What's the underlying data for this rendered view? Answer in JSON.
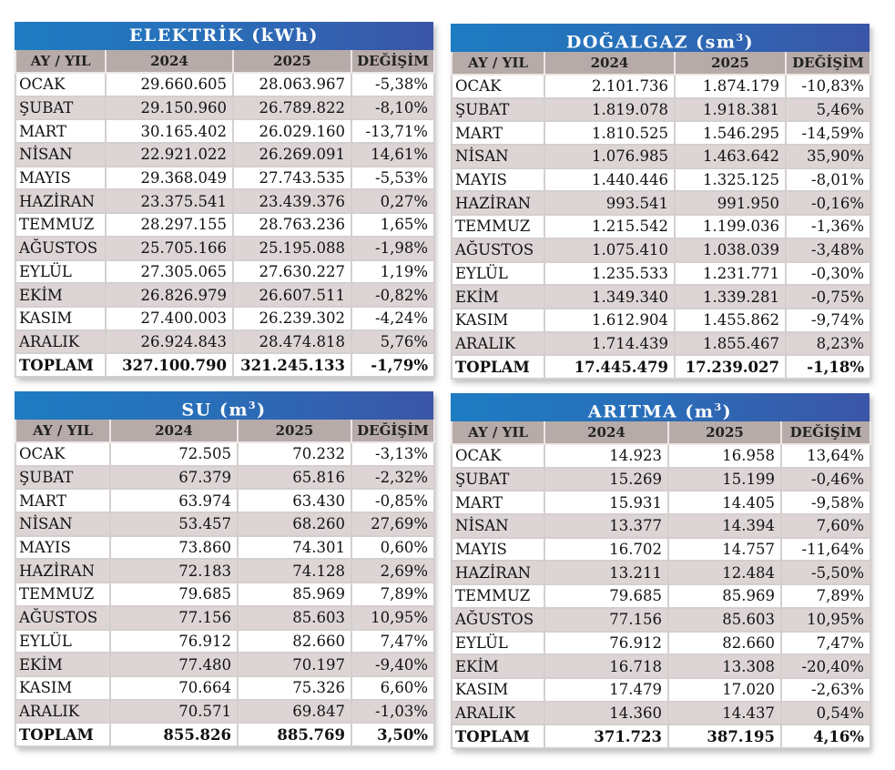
{
  "headers": {
    "month": "AY / YIL",
    "y2024": "2024",
    "y2025": "2025",
    "change": "DEĞİŞİM"
  },
  "colors": {
    "title_start": "#1d7cc2",
    "title_end": "#3b55a7",
    "header_bg": "#b6aba8",
    "row_alt": "#ddd5d5"
  },
  "tables": [
    {
      "id": "elektrik",
      "title": "ELEKTRİK (kWh)",
      "title_main": "ELEKTRİK (kWh)",
      "title_sup": "",
      "rows": [
        [
          "OCAK",
          "29.660.605",
          "28.063.967",
          "-5,38%"
        ],
        [
          "ŞUBAT",
          "29.150.960",
          "26.789.822",
          "-8,10%"
        ],
        [
          "MART",
          "30.165.402",
          "26.029.160",
          "-13,71%"
        ],
        [
          "NİSAN",
          "22.921.022",
          "26.269.091",
          "14,61%"
        ],
        [
          "MAYIS",
          "29.368.049",
          "27.743.535",
          "-5,53%"
        ],
        [
          "HAZİRAN",
          "23.375.541",
          "23.439.376",
          "0,27%"
        ],
        [
          "TEMMUZ",
          "28.297.155",
          "28.763.236",
          "1,65%"
        ],
        [
          "AĞUSTOS",
          "25.705.166",
          "25.195.088",
          "-1,98%"
        ],
        [
          "EYLÜL",
          "27.305.065",
          "27.630.227",
          "1,19%"
        ],
        [
          "EKİM",
          "26.826.979",
          "26.607.511",
          "-0,82%"
        ],
        [
          "KASIM",
          "27.400.003",
          "26.239.302",
          "-4,24%"
        ],
        [
          "ARALIK",
          "26.924.843",
          "28.474.818",
          "5,76%"
        ]
      ],
      "total": [
        "TOPLAM",
        "327.100.790",
        "321.245.133",
        "-1,79%"
      ]
    },
    {
      "id": "dogalgaz",
      "title": "DOĞALGAZ (sm³)",
      "title_main": "DOĞALGAZ (sm",
      "title_sup": "3",
      "rows": [
        [
          "OCAK",
          "2.101.736",
          "1.874.179",
          "-10,83%"
        ],
        [
          "ŞUBAT",
          "1.819.078",
          "1.918.381",
          "5,46%"
        ],
        [
          "MART",
          "1.810.525",
          "1.546.295",
          "-14,59%"
        ],
        [
          "NİSAN",
          "1.076.985",
          "1.463.642",
          "35,90%"
        ],
        [
          "MAYIS",
          "1.440.446",
          "1.325.125",
          "-8,01%"
        ],
        [
          "HAZİRAN",
          "993.541",
          "991.950",
          "-0,16%"
        ],
        [
          "TEMMUZ",
          "1.215.542",
          "1.199.036",
          "-1,36%"
        ],
        [
          "AĞUSTOS",
          "1.075.410",
          "1.038.039",
          "-3,48%"
        ],
        [
          "EYLÜL",
          "1.235.533",
          "1.231.771",
          "-0,30%"
        ],
        [
          "EKİM",
          "1.349.340",
          "1.339.281",
          "-0,75%"
        ],
        [
          "KASIM",
          "1.612.904",
          "1.455.862",
          "-9,74%"
        ],
        [
          "ARALIK",
          "1.714.439",
          "1.855.467",
          "8,23%"
        ]
      ],
      "total": [
        "TOPLAM",
        "17.445.479",
        "17.239.027",
        "-1,18%"
      ]
    },
    {
      "id": "su",
      "title": "SU (m³)",
      "title_main": "SU (m",
      "title_sup": "3",
      "rows": [
        [
          "OCAK",
          "72.505",
          "70.232",
          "-3,13%"
        ],
        [
          "ŞUBAT",
          "67.379",
          "65.816",
          "-2,32%"
        ],
        [
          "MART",
          "63.974",
          "63.430",
          "-0,85%"
        ],
        [
          "NİSAN",
          "53.457",
          "68.260",
          "27,69%"
        ],
        [
          "MAYIS",
          "73.860",
          "74.301",
          "0,60%"
        ],
        [
          "HAZİRAN",
          "72.183",
          "74.128",
          "2,69%"
        ],
        [
          "TEMMUZ",
          "79.685",
          "85.969",
          "7,89%"
        ],
        [
          "AĞUSTOS",
          "77.156",
          "85.603",
          "10,95%"
        ],
        [
          "EYLÜL",
          "76.912",
          "82.660",
          "7,47%"
        ],
        [
          "EKİM",
          "77.480",
          "70.197",
          "-9,40%"
        ],
        [
          "KASIM",
          "70.664",
          "75.326",
          "6,60%"
        ],
        [
          "ARALIK",
          "70.571",
          "69.847",
          "-1,03%"
        ]
      ],
      "total": [
        "TOPLAM",
        "855.826",
        "885.769",
        "3,50%"
      ]
    },
    {
      "id": "aritma",
      "title": "ARITMA (m³)",
      "title_main": "ARITMA (m",
      "title_sup": "3",
      "rows": [
        [
          "OCAK",
          "14.923",
          "16.958",
          "13,64%"
        ],
        [
          "ŞUBAT",
          "15.269",
          "15.199",
          "-0,46%"
        ],
        [
          "MART",
          "15.931",
          "14.405",
          "-9,58%"
        ],
        [
          "NİSAN",
          "13.377",
          "14.394",
          "7,60%"
        ],
        [
          "MAYIS",
          "16.702",
          "14.757",
          "-11,64%"
        ],
        [
          "HAZİRAN",
          "13.211",
          "12.484",
          "-5,50%"
        ],
        [
          "TEMMUZ",
          "79.685",
          "85.969",
          "7,89%"
        ],
        [
          "AĞUSTOS",
          "77.156",
          "85.603",
          "10,95%"
        ],
        [
          "EYLÜL",
          "76.912",
          "82.660",
          "7,47%"
        ],
        [
          "EKİM",
          "16.718",
          "13.308",
          "-20,40%"
        ],
        [
          "KASIM",
          "17.479",
          "17.020",
          "-2,63%"
        ],
        [
          "ARALIK",
          "14.360",
          "14.437",
          "0,54%"
        ]
      ],
      "total": [
        "TOPLAM",
        "371.723",
        "387.195",
        "4,16%"
      ]
    }
  ]
}
